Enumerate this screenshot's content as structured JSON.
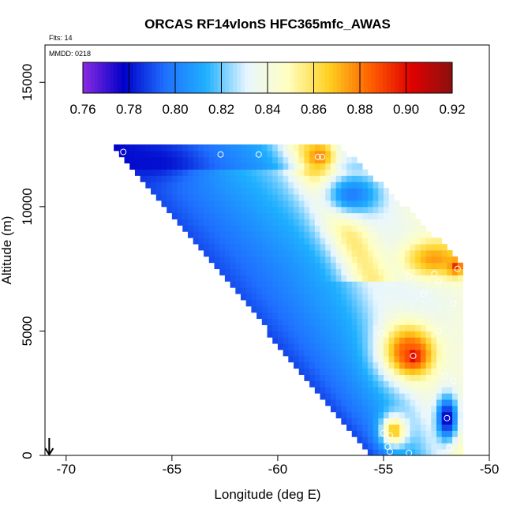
{
  "chart_data": {
    "type": "heatmap",
    "title": "ORCAS RF14vlonS HFC365mfc_AWAS",
    "annotations": {
      "flts": "Flts: 14",
      "mmdd": "MMDD: 0218"
    },
    "xlabel": "Longitude (deg E)",
    "ylabel": "Altitude (m)",
    "xlim": [
      -71,
      -50
    ],
    "ylim": [
      0,
      16500
    ],
    "x_ticks": [
      -70,
      -65,
      -60,
      -55,
      -50
    ],
    "x_tick_labels": [
      "-70",
      "-65",
      "-60",
      "-55",
      "-50"
    ],
    "y_ticks": [
      0,
      5000,
      10000,
      15000
    ],
    "y_tick_labels": [
      "0",
      "5000",
      "10000",
      "15000"
    ],
    "colorbar": {
      "min": 0.76,
      "max": 0.92,
      "ticks": [
        0.76,
        0.78,
        0.8,
        0.82,
        0.84,
        0.86,
        0.88,
        0.9,
        0.92
      ],
      "tick_labels": [
        "0.76",
        "0.78",
        "0.80",
        "0.82",
        "0.84",
        "0.86",
        "0.88",
        "0.90",
        "0.92"
      ],
      "colors": [
        "#8a2be2",
        "#0000c8",
        "#1f6fff",
        "#1fb0ff",
        "#e8f6ff",
        "#ffffc0",
        "#ffd020",
        "#ff6000",
        "#e00000",
        "#8b1010"
      ]
    },
    "field": {
      "lon_at_top": -67.5,
      "lon_at_bottom": -55.5,
      "altitude_top": 12300,
      "lon_right_edge": -51.3,
      "altitude_right_top": 7700,
      "grid_dx": 0.25,
      "grid_dy": 250
    },
    "hotspots": [
      {
        "lon": -53.6,
        "alt": 4000,
        "value": 0.905,
        "radius_lon": 0.6,
        "radius_alt": 500
      },
      {
        "lon": -53.8,
        "alt": 4200,
        "value": 0.885,
        "radius_lon": 1.3,
        "radius_alt": 1100
      },
      {
        "lon": -51.6,
        "alt": 7600,
        "value": 0.895,
        "radius_lon": 0.4,
        "radius_alt": 350
      },
      {
        "lon": -52.6,
        "alt": 7900,
        "value": 0.875,
        "radius_lon": 1.6,
        "radius_alt": 800
      },
      {
        "lon": -58.0,
        "alt": 12000,
        "value": 0.88,
        "radius_lon": 0.7,
        "radius_alt": 600
      },
      {
        "lon": -54.5,
        "alt": 1000,
        "value": 0.87,
        "radius_lon": 0.6,
        "radius_alt": 600
      }
    ],
    "coldspots": [
      {
        "lon": -52.0,
        "alt": 1500,
        "value": 0.775,
        "radius_lon": 0.5,
        "radius_alt": 900
      },
      {
        "lon": -66.0,
        "alt": 11800,
        "value": 0.78,
        "radius_lon": 2.0,
        "radius_alt": 700
      },
      {
        "lon": -56.5,
        "alt": 10500,
        "value": 0.8,
        "radius_lon": 1.5,
        "radius_alt": 900
      }
    ],
    "sample_points": [
      {
        "lon": -67.3,
        "alt": 12200
      },
      {
        "lon": -62.7,
        "alt": 12100
      },
      {
        "lon": -60.9,
        "alt": 12100
      },
      {
        "lon": -58.1,
        "alt": 12000
      },
      {
        "lon": -57.9,
        "alt": 12000
      },
      {
        "lon": -53.8,
        "alt": 7200
      },
      {
        "lon": -52.6,
        "alt": 7300
      },
      {
        "lon": -52.4,
        "alt": 7000
      },
      {
        "lon": -51.5,
        "alt": 7500
      },
      {
        "lon": -53.1,
        "alt": 6500
      },
      {
        "lon": -51.7,
        "alt": 6100
      },
      {
        "lon": -55.1,
        "alt": 4900
      },
      {
        "lon": -52.4,
        "alt": 5000
      },
      {
        "lon": -53.6,
        "alt": 4000
      },
      {
        "lon": -52.1,
        "alt": 3200
      },
      {
        "lon": -51.7,
        "alt": 3000
      },
      {
        "lon": -52.0,
        "alt": 1500
      },
      {
        "lon": -54.7,
        "alt": 800
      },
      {
        "lon": -55.0,
        "alt": 900
      },
      {
        "lon": -54.8,
        "alt": 350
      },
      {
        "lon": -54.7,
        "alt": 150
      },
      {
        "lon": -53.8,
        "alt": 100
      },
      {
        "lon": -51.9,
        "alt": 300
      }
    ],
    "flight_marker": {
      "lon": -70.8,
      "alt": 700
    }
  }
}
